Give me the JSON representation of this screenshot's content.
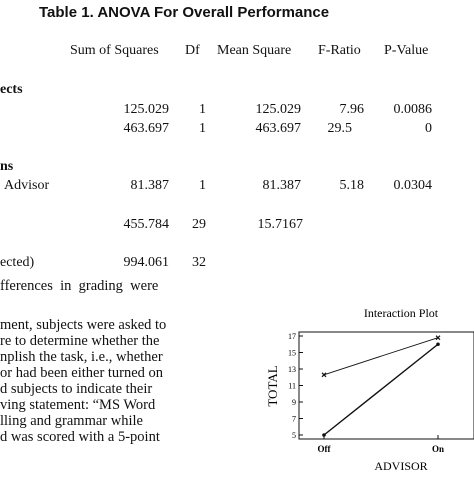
{
  "table": {
    "title": "Table 1. ANOVA For Overall Performance",
    "headers": [
      "Sum of Squares",
      "Df",
      "Mean Square",
      "F-Ratio",
      "P-Value"
    ],
    "section_main": "ects",
    "section_interactions": "ns",
    "rows": [
      {
        "label": "",
        "ss": "125.029",
        "df": "1",
        "ms": "125.029",
        "f": "7.96",
        "p": "0.0086"
      },
      {
        "label": "",
        "ss": "463.697",
        "df": "1",
        "ms": "463.697",
        "f": "29.5",
        "p": "0"
      },
      {
        "label": "Advisor",
        "ss": "81.387",
        "df": "1",
        "ms": "81.387",
        "f": "5.18",
        "p": "0.0304"
      },
      {
        "label": "",
        "ss": "455.784",
        "df": "29",
        "ms": "15.7167",
        "f": "",
        "p": ""
      },
      {
        "label": "ected)",
        "ss": "994.061",
        "df": "32",
        "ms": "",
        "f": "",
        "p": ""
      }
    ]
  },
  "text_lines": [
    "fferences  in  grading  were",
    "ment, subjects were asked to",
    "re to determine whether the",
    "nplish the task, i.e., whether",
    "or had been either turned on",
    "d subjects to indicate their",
    "ving statement: “MS Word",
    "lling and grammar while",
    "d was scored with a 5-point"
  ],
  "chart_data": {
    "type": "line",
    "title": "Interaction Plot",
    "xlabel": "ADVISOR",
    "ylabel": "TOTAL",
    "categories": [
      "Off",
      "On"
    ],
    "ylim": [
      5,
      17
    ],
    "yticks": [
      "5",
      "7",
      "9",
      "11",
      "13",
      "15",
      "17"
    ],
    "series": [
      {
        "values": [
          12.3,
          16.8
        ],
        "marker": "x"
      },
      {
        "values": [
          5.0,
          16.0
        ],
        "marker": "circle"
      }
    ]
  }
}
